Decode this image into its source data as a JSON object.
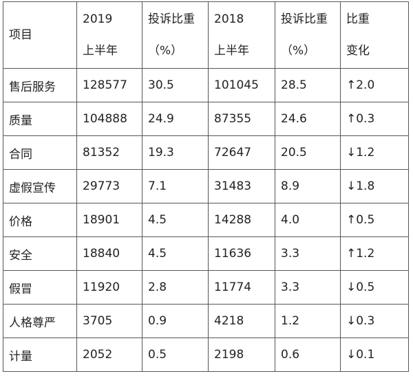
{
  "table": {
    "headers": [
      {
        "line1": "项目",
        "line2": ""
      },
      {
        "line1": "2019",
        "line2": "上半年"
      },
      {
        "line1": "投诉比重",
        "line2": "（%）"
      },
      {
        "line1": "2018",
        "line2": "上半年"
      },
      {
        "line1": "投诉比重",
        "line2": "（%）"
      },
      {
        "line1": "比重",
        "line2": "变化"
      }
    ],
    "rows": [
      [
        "售后服务",
        "128577",
        "30.5",
        "101045",
        "28.5",
        "↑2.0"
      ],
      [
        "质量",
        "104888",
        "24.9",
        "87355",
        "24.6",
        "↑0.3"
      ],
      [
        "合同",
        "81352",
        "19.3",
        "72647",
        "20.5",
        "↓1.2"
      ],
      [
        "虚假宣传",
        "29773",
        "7.1",
        "31483",
        "8.9",
        "↓1.8"
      ],
      [
        "价格",
        "18901",
        "4.5",
        "14288",
        "4.0",
        "↑0.5"
      ],
      [
        "安全",
        "18840",
        "4.5",
        "11636",
        "3.3",
        "↑1.2"
      ],
      [
        "假冒",
        "11920",
        "2.8",
        "11774",
        "3.3",
        "↓0.5"
      ],
      [
        "人格尊严",
        "3705",
        "0.9",
        "4218",
        "1.2",
        "↓0.3"
      ],
      [
        "计量",
        "2052",
        "0.5",
        "2198",
        "0.6",
        "↓0.1"
      ]
    ]
  }
}
